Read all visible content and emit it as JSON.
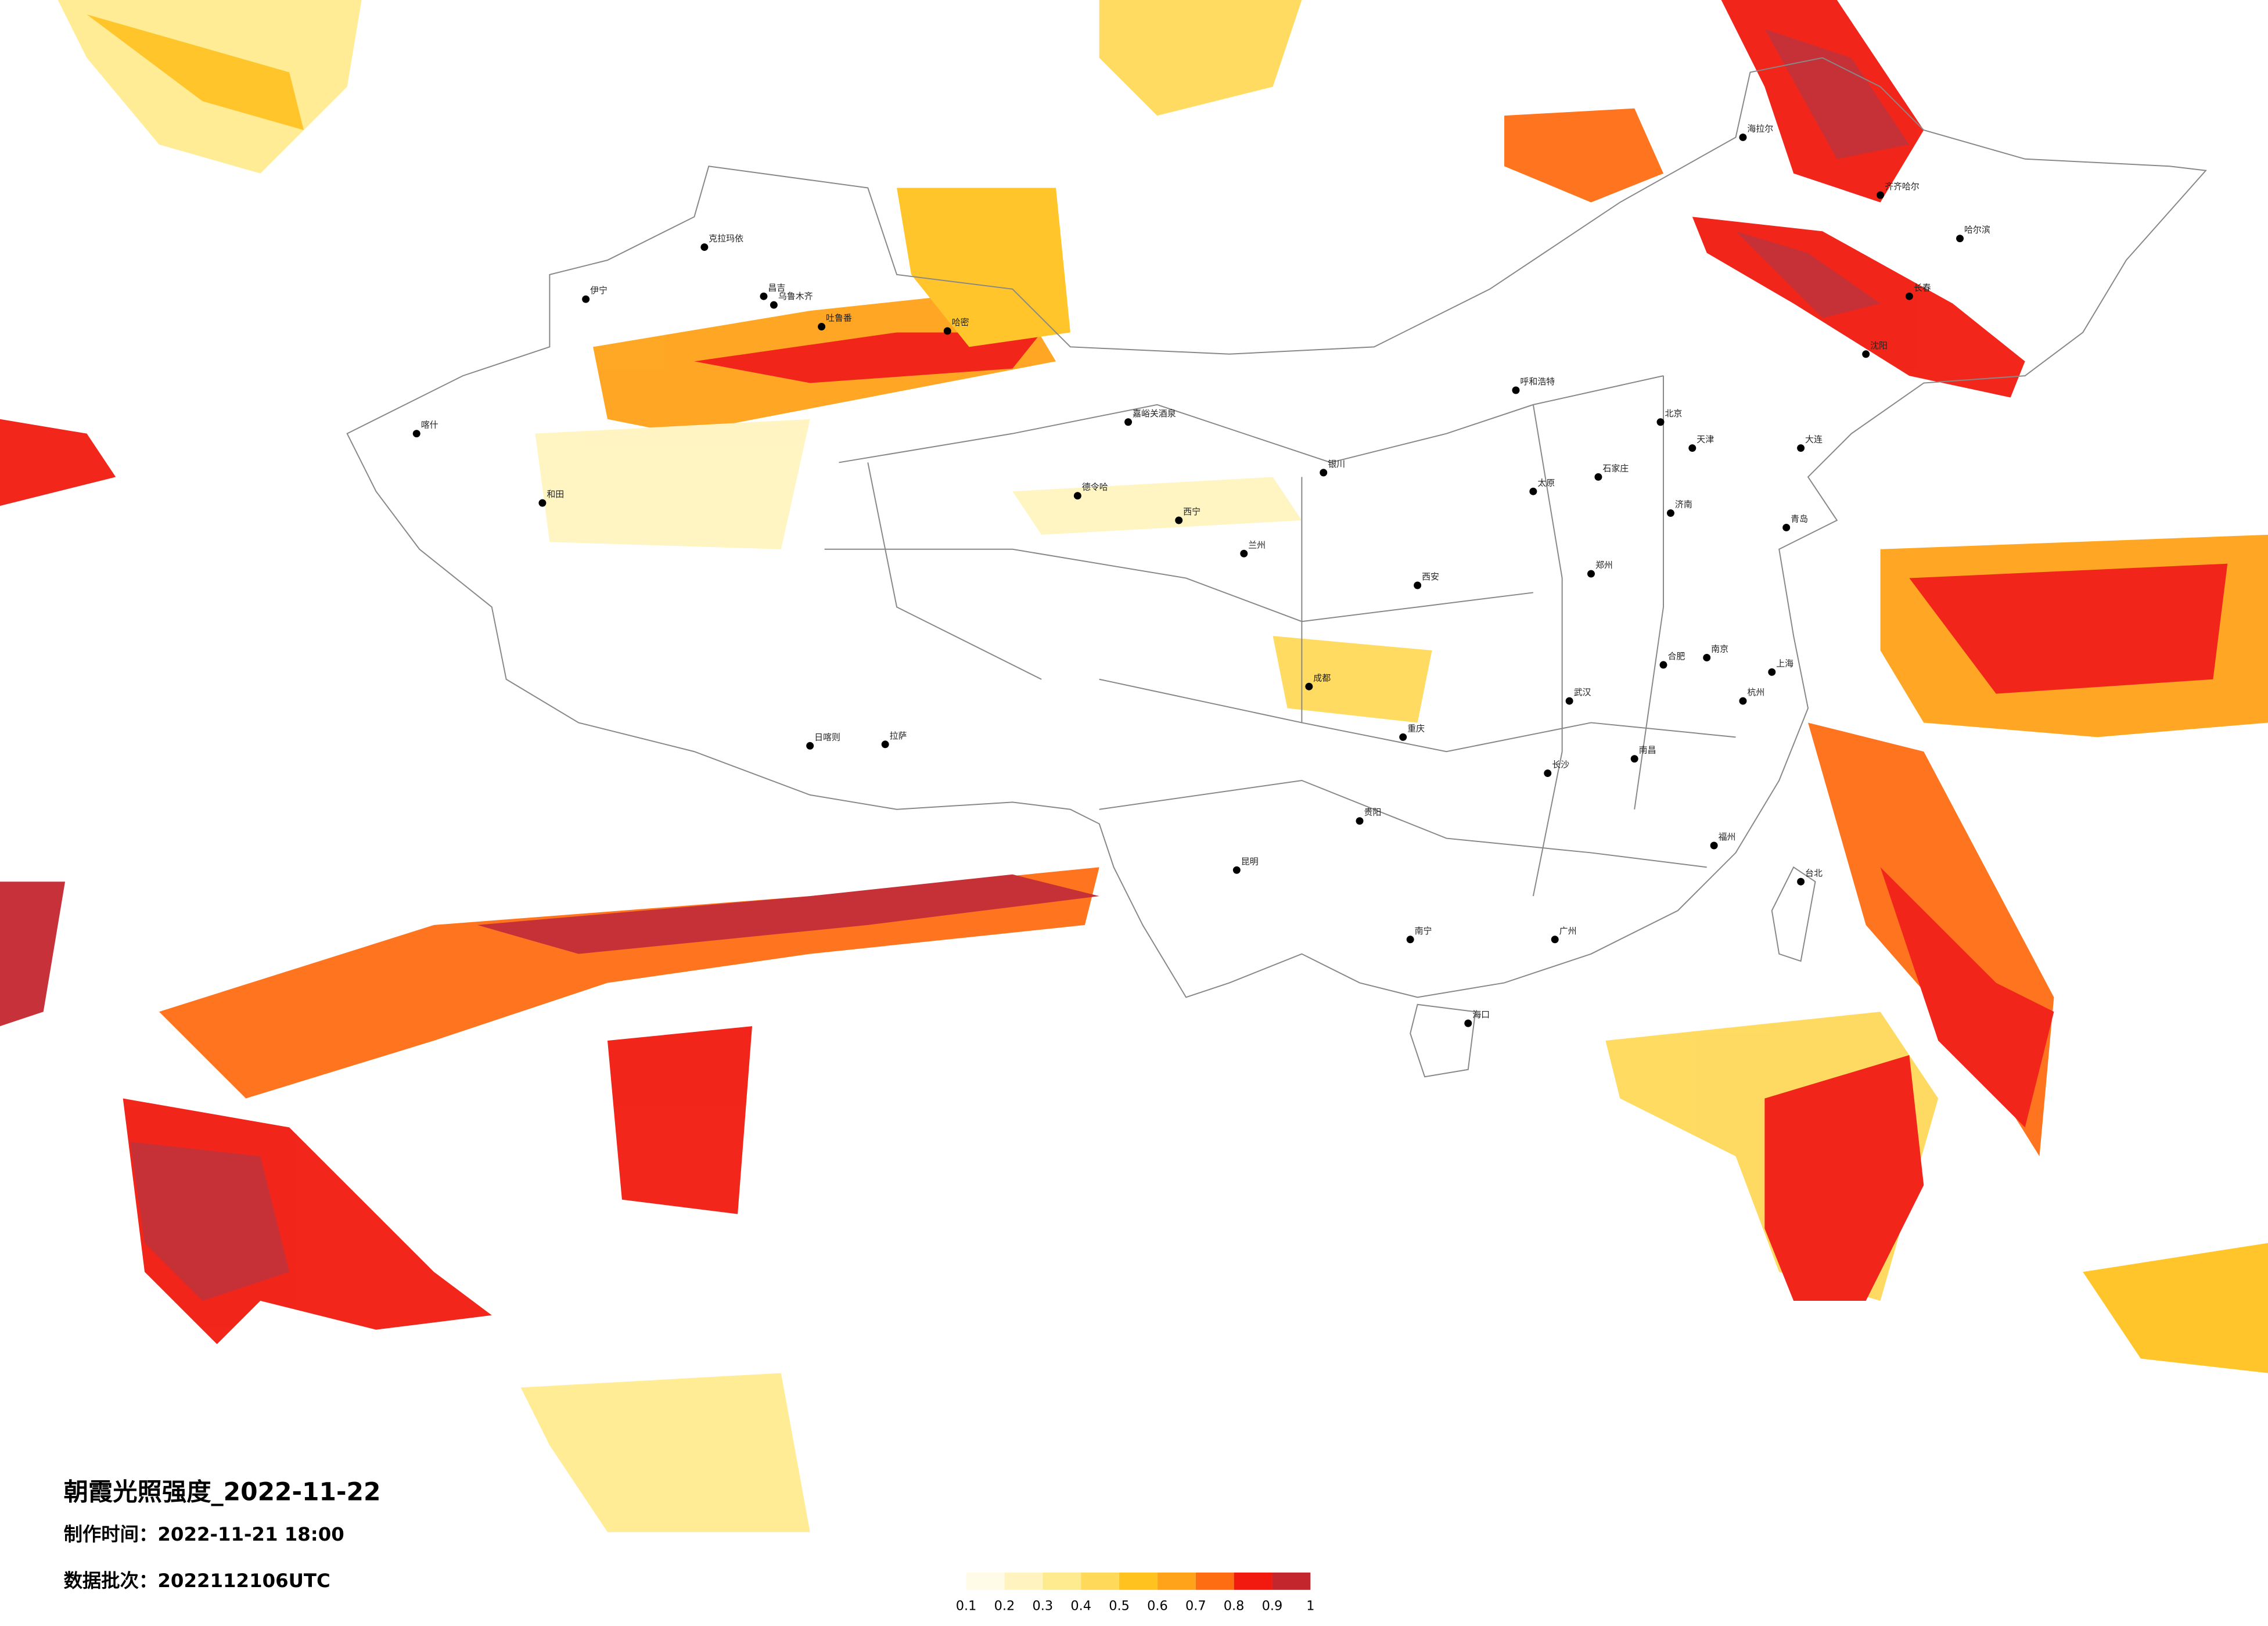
{
  "header": {
    "title": "朝霞光照强度_2022-11-22",
    "made_time": "制作时间：2022-11-21 18:00",
    "batch": "数据批次：2022112106UTC"
  },
  "legend": {
    "ticks": [
      0.1,
      0.2,
      0.3,
      0.4,
      0.5,
      0.6,
      0.7,
      0.8,
      0.9,
      1
    ],
    "colors": [
      "#fffbe6",
      "#fff4bf",
      "#ffeb8f",
      "#ffd95a",
      "#ffc21f",
      "#ffa31a",
      "#ff6d12",
      "#f21a0f",
      "#c4262e"
    ]
  },
  "cities": [
    "克拉玛依",
    "乌鲁木齐",
    "伊宁",
    "昌吉",
    "吐鲁番",
    "哈密",
    "喀什",
    "和田",
    "拉萨",
    "日喀则",
    "嘉峪关酒泉",
    "德令哈",
    "西宁",
    "兰州",
    "银川",
    "呼和浩特",
    "北京",
    "天津",
    "石家庄",
    "太原",
    "郑州",
    "西安",
    "成都",
    "重庆",
    "贵阳",
    "昆明",
    "南宁",
    "广州",
    "福州",
    "杭州",
    "上海",
    "南京",
    "武汉",
    "长沙",
    "南昌",
    "合肥",
    "济南",
    "沈阳",
    "长春",
    "哈尔滨",
    "海口",
    "台北",
    "齐齐哈尔",
    "海拉尔",
    "大连",
    "青岛"
  ]
}
